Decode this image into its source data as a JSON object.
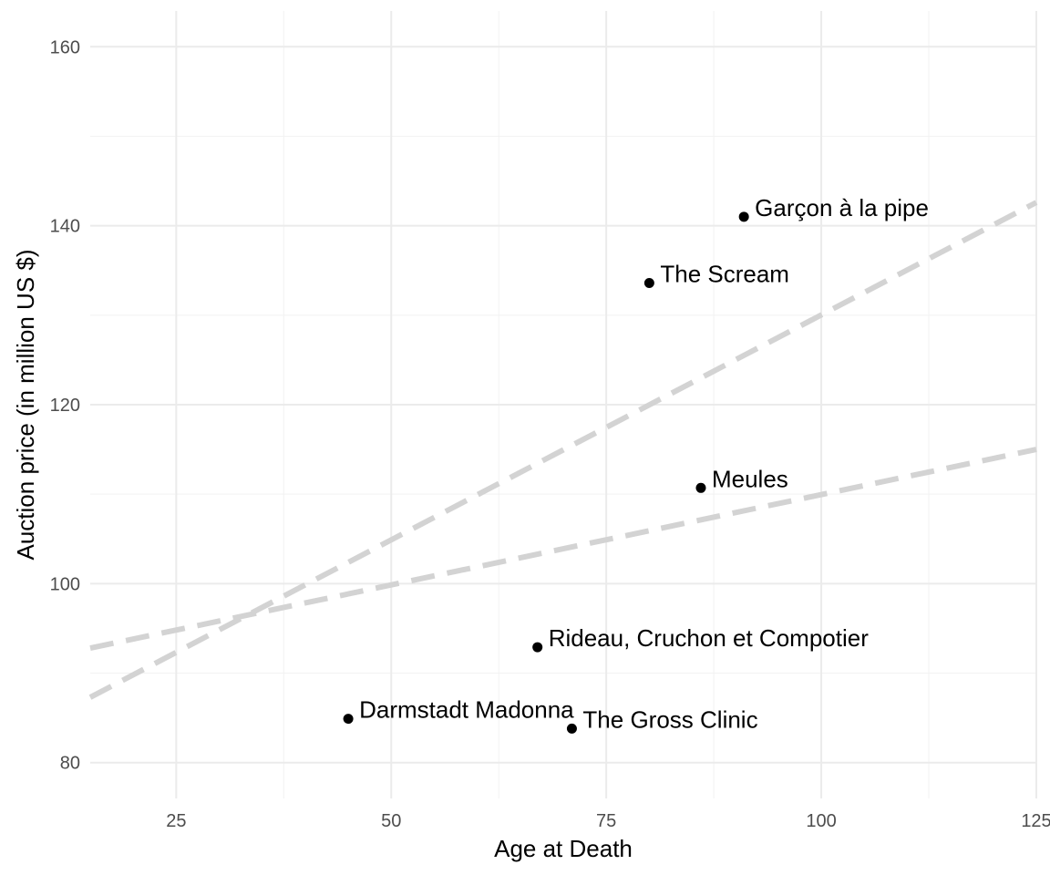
{
  "chart_data": {
    "type": "scatter",
    "title": "",
    "xlabel": "Age at Death",
    "ylabel": "Auction price (in million US $)",
    "xlim": [
      15,
      125
    ],
    "ylim": [
      76,
      164
    ],
    "x_ticks": [
      25,
      50,
      75,
      100,
      125
    ],
    "x_tick_labels": [
      "25",
      "50",
      "75",
      "100",
      "125"
    ],
    "y_ticks": [
      80,
      100,
      120,
      140,
      160
    ],
    "y_tick_labels": [
      "80",
      "100",
      "120",
      "140",
      "160"
    ],
    "grid": true,
    "point_color": "#000000",
    "trend_color": "#d3d3d3",
    "points": [
      {
        "label": "Garçon à la pipe",
        "x": 91,
        "y": 141
      },
      {
        "label": "The Scream",
        "x": 80,
        "y": 133.6
      },
      {
        "label": "Meules",
        "x": 86,
        "y": 110.7
      },
      {
        "label": "Rideau, Cruchon et Compotier",
        "x": 67,
        "y": 92.9
      },
      {
        "label": "Darmstadt Madonna",
        "x": 45,
        "y": 84.9
      },
      {
        "label": "The Gross Clinic",
        "x": 71,
        "y": 83.8
      }
    ],
    "trend_lines": [
      {
        "x": [
          15,
          125
        ],
        "y": [
          87.3,
          142.6
        ]
      },
      {
        "x": [
          15,
          125
        ],
        "y": [
          92.8,
          115.0
        ]
      }
    ]
  }
}
